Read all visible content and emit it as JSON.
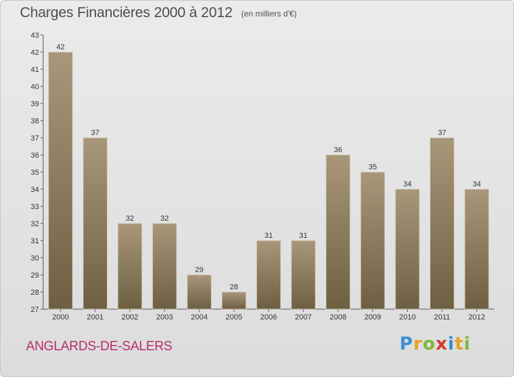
{
  "header": {
    "title": "Charges Financières 2000 à 2012",
    "subtitle": "(en milliers d'€)"
  },
  "footer": {
    "commune": "ANGLARDS-DE-SALERS",
    "logo": {
      "letters": [
        "P",
        "r",
        "o",
        "x",
        "i",
        "t",
        "i"
      ],
      "colors": [
        "#3a8fd6",
        "#e8a020",
        "#7cb83a",
        "#d43a2a",
        "#2f8fd0",
        "#e8a020",
        "#7cb83a"
      ]
    }
  },
  "chart_data": {
    "type": "bar",
    "title": "Charges Financières 2000 à 2012",
    "subtitle": "(en milliers d'€)",
    "xlabel": "",
    "ylabel": "",
    "categories": [
      "2000",
      "2001",
      "2002",
      "2003",
      "2004",
      "2005",
      "2006",
      "2007",
      "2008",
      "2009",
      "2010",
      "2011",
      "2012"
    ],
    "values": [
      42,
      37,
      32,
      32,
      29,
      28,
      31,
      31,
      36,
      35,
      34,
      37,
      34
    ],
    "ylim": [
      27,
      43
    ],
    "yticks": [
      27,
      28,
      29,
      30,
      31,
      32,
      33,
      34,
      35,
      36,
      37,
      38,
      39,
      40,
      41,
      42,
      43
    ],
    "grid": false,
    "legend": "none",
    "colors": {
      "bar_top": "#a8977a",
      "bar_bottom": "#6e5f43",
      "axis": "#555555"
    }
  }
}
